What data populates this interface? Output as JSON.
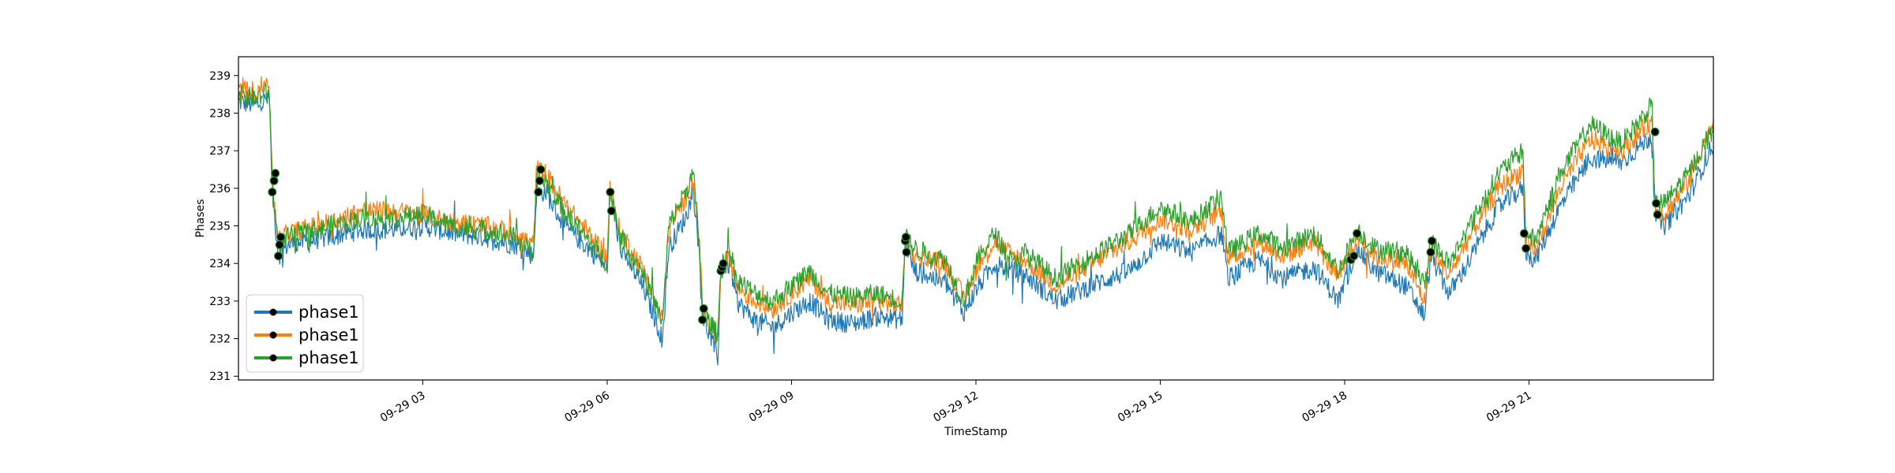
{
  "chart_data": {
    "type": "line",
    "title": "",
    "xlabel": "TimeStamp",
    "ylabel": "Phases",
    "xlim": [
      "09-29 00:00",
      "09-29 24:00"
    ],
    "ylim": [
      230.9,
      239.5
    ],
    "grid": false,
    "legend_position": "lower-left",
    "y_ticks": [
      231,
      232,
      233,
      234,
      235,
      236,
      237,
      238,
      239
    ],
    "x_ticks": [
      {
        "hour": 3,
        "label": "09-29 03"
      },
      {
        "hour": 6,
        "label": "09-29 06"
      },
      {
        "hour": 9,
        "label": "09-29 09"
      },
      {
        "hour": 12,
        "label": "09-29 12"
      },
      {
        "hour": 15,
        "label": "09-29 15"
      },
      {
        "hour": 18,
        "label": "09-29 18"
      },
      {
        "hour": 21,
        "label": "09-29 21"
      }
    ],
    "series": [
      {
        "name": "phase1",
        "color": "#1f77b4",
        "points": [
          [
            0.0,
            238.3
          ],
          [
            0.3,
            238.2
          ],
          [
            0.5,
            238.4
          ],
          [
            0.55,
            235.9
          ],
          [
            0.65,
            234.2
          ],
          [
            0.8,
            234.5
          ],
          [
            1.5,
            234.7
          ],
          [
            2.0,
            234.9
          ],
          [
            2.5,
            234.9
          ],
          [
            3.0,
            235.0
          ],
          [
            3.5,
            234.8
          ],
          [
            4.0,
            234.7
          ],
          [
            4.5,
            234.5
          ],
          [
            4.8,
            234.2
          ],
          [
            4.85,
            235.9
          ],
          [
            5.0,
            235.9
          ],
          [
            5.3,
            235.0
          ],
          [
            5.7,
            234.4
          ],
          [
            6.0,
            233.9
          ],
          [
            6.05,
            235.9
          ],
          [
            6.2,
            234.5
          ],
          [
            6.6,
            233.3
          ],
          [
            6.9,
            232.0
          ],
          [
            7.0,
            234.4
          ],
          [
            7.3,
            235.3
          ],
          [
            7.4,
            236.0
          ],
          [
            7.5,
            234.3
          ],
          [
            7.55,
            232.6
          ],
          [
            7.8,
            231.5
          ],
          [
            7.85,
            233.8
          ],
          [
            8.0,
            234.0
          ],
          [
            8.1,
            233.0
          ],
          [
            8.4,
            232.5
          ],
          [
            8.7,
            232.3
          ],
          [
            9.0,
            232.7
          ],
          [
            9.3,
            233.0
          ],
          [
            9.6,
            232.5
          ],
          [
            10.0,
            232.4
          ],
          [
            10.4,
            232.6
          ],
          [
            10.8,
            232.5
          ],
          [
            10.85,
            234.6
          ],
          [
            11.0,
            233.8
          ],
          [
            11.5,
            233.5
          ],
          [
            11.8,
            232.7
          ],
          [
            12.0,
            233.3
          ],
          [
            12.3,
            234.0
          ],
          [
            12.6,
            233.8
          ],
          [
            12.8,
            233.7
          ],
          [
            13.3,
            233.0
          ],
          [
            14.0,
            233.5
          ],
          [
            14.5,
            233.8
          ],
          [
            15.0,
            234.6
          ],
          [
            15.5,
            234.3
          ],
          [
            16.0,
            234.8
          ],
          [
            16.1,
            233.6
          ],
          [
            16.6,
            234.1
          ],
          [
            17.0,
            233.6
          ],
          [
            17.5,
            233.9
          ],
          [
            17.9,
            233.0
          ],
          [
            18.2,
            234.4
          ],
          [
            18.5,
            233.8
          ],
          [
            19.0,
            233.4
          ],
          [
            19.3,
            232.6
          ],
          [
            19.4,
            234.2
          ],
          [
            19.7,
            233.2
          ],
          [
            20.0,
            234.0
          ],
          [
            20.5,
            235.5
          ],
          [
            20.9,
            236.0
          ],
          [
            20.95,
            234.3
          ],
          [
            21.1,
            234.1
          ],
          [
            21.5,
            235.5
          ],
          [
            22.0,
            236.8
          ],
          [
            22.5,
            236.7
          ],
          [
            23.0,
            237.4
          ],
          [
            23.05,
            235.3
          ],
          [
            23.2,
            235.0
          ],
          [
            23.6,
            235.8
          ],
          [
            24.0,
            237.2
          ]
        ]
      },
      {
        "name": "phase1",
        "color": "#ff7f0e",
        "points": [
          [
            0.0,
            238.6
          ],
          [
            0.3,
            238.6
          ],
          [
            0.5,
            238.9
          ],
          [
            0.55,
            236.1
          ],
          [
            0.65,
            234.6
          ],
          [
            0.8,
            234.8
          ],
          [
            1.5,
            235.1
          ],
          [
            2.0,
            235.4
          ],
          [
            2.5,
            235.4
          ],
          [
            3.0,
            235.3
          ],
          [
            3.5,
            235.1
          ],
          [
            4.0,
            235.0
          ],
          [
            4.5,
            234.8
          ],
          [
            4.8,
            234.5
          ],
          [
            4.85,
            236.5
          ],
          [
            5.0,
            236.4
          ],
          [
            5.3,
            235.6
          ],
          [
            5.7,
            234.8
          ],
          [
            6.0,
            234.2
          ],
          [
            6.05,
            235.9
          ],
          [
            6.2,
            234.9
          ],
          [
            6.6,
            233.8
          ],
          [
            6.9,
            232.5
          ],
          [
            7.0,
            234.9
          ],
          [
            7.3,
            235.8
          ],
          [
            7.4,
            236.2
          ],
          [
            7.5,
            234.6
          ],
          [
            7.55,
            232.8
          ],
          [
            7.8,
            232.0
          ],
          [
            7.85,
            233.9
          ],
          [
            8.0,
            234.2
          ],
          [
            8.1,
            233.4
          ],
          [
            8.4,
            233.0
          ],
          [
            8.7,
            232.8
          ],
          [
            9.0,
            233.2
          ],
          [
            9.3,
            233.6
          ],
          [
            9.6,
            233.0
          ],
          [
            10.0,
            232.9
          ],
          [
            10.4,
            233.0
          ],
          [
            10.8,
            232.9
          ],
          [
            10.85,
            234.6
          ],
          [
            11.0,
            234.2
          ],
          [
            11.5,
            234.0
          ],
          [
            11.8,
            233.1
          ],
          [
            12.0,
            233.8
          ],
          [
            12.3,
            234.6
          ],
          [
            12.6,
            234.2
          ],
          [
            12.8,
            234.1
          ],
          [
            13.3,
            233.4
          ],
          [
            14.0,
            234.1
          ],
          [
            14.5,
            234.6
          ],
          [
            15.0,
            235.2
          ],
          [
            15.5,
            234.9
          ],
          [
            16.0,
            235.4
          ],
          [
            16.1,
            234.1
          ],
          [
            16.6,
            234.6
          ],
          [
            17.0,
            234.2
          ],
          [
            17.5,
            234.6
          ],
          [
            17.9,
            233.6
          ],
          [
            18.2,
            234.7
          ],
          [
            18.5,
            234.2
          ],
          [
            19.0,
            234.0
          ],
          [
            19.3,
            233.0
          ],
          [
            19.4,
            234.4
          ],
          [
            19.7,
            233.7
          ],
          [
            20.0,
            234.6
          ],
          [
            20.5,
            236.0
          ],
          [
            20.9,
            236.5
          ],
          [
            20.95,
            234.5
          ],
          [
            21.1,
            234.3
          ],
          [
            21.5,
            236.0
          ],
          [
            22.0,
            237.3
          ],
          [
            22.5,
            237.0
          ],
          [
            23.0,
            237.8
          ],
          [
            23.05,
            235.5
          ],
          [
            23.2,
            235.3
          ],
          [
            23.6,
            236.2
          ],
          [
            24.0,
            237.8
          ]
        ]
      },
      {
        "name": "phase1",
        "color": "#2ca02c",
        "points": [
          [
            0.0,
            238.5
          ],
          [
            0.3,
            238.4
          ],
          [
            0.5,
            238.6
          ],
          [
            0.55,
            236.2
          ],
          [
            0.65,
            234.4
          ],
          [
            0.8,
            234.7
          ],
          [
            1.5,
            235.0
          ],
          [
            2.0,
            235.2
          ],
          [
            2.5,
            235.2
          ],
          [
            3.0,
            235.3
          ],
          [
            3.5,
            235.0
          ],
          [
            4.0,
            234.9
          ],
          [
            4.5,
            234.7
          ],
          [
            4.8,
            234.3
          ],
          [
            4.85,
            236.2
          ],
          [
            5.0,
            236.2
          ],
          [
            5.3,
            235.4
          ],
          [
            5.7,
            234.6
          ],
          [
            6.0,
            234.0
          ],
          [
            6.05,
            235.9
          ],
          [
            6.2,
            234.8
          ],
          [
            6.6,
            233.7
          ],
          [
            6.9,
            232.4
          ],
          [
            7.0,
            235.0
          ],
          [
            7.3,
            236.0
          ],
          [
            7.4,
            236.4
          ],
          [
            7.5,
            234.5
          ],
          [
            7.55,
            232.7
          ],
          [
            7.8,
            232.1
          ],
          [
            7.85,
            234.0
          ],
          [
            8.0,
            234.4
          ],
          [
            8.1,
            233.6
          ],
          [
            8.4,
            233.2
          ],
          [
            8.7,
            233.0
          ],
          [
            9.0,
            233.4
          ],
          [
            9.3,
            233.8
          ],
          [
            9.6,
            233.2
          ],
          [
            10.0,
            233.1
          ],
          [
            10.4,
            233.2
          ],
          [
            10.8,
            233.0
          ],
          [
            10.85,
            234.7
          ],
          [
            11.0,
            234.4
          ],
          [
            11.5,
            234.1
          ],
          [
            11.8,
            233.0
          ],
          [
            12.0,
            234.0
          ],
          [
            12.3,
            234.8
          ],
          [
            12.6,
            234.0
          ],
          [
            12.8,
            234.3
          ],
          [
            13.3,
            233.6
          ],
          [
            14.0,
            234.3
          ],
          [
            14.5,
            234.8
          ],
          [
            15.0,
            235.5
          ],
          [
            15.5,
            235.1
          ],
          [
            16.0,
            235.8
          ],
          [
            16.1,
            234.3
          ],
          [
            16.6,
            234.8
          ],
          [
            17.0,
            234.4
          ],
          [
            17.5,
            234.8
          ],
          [
            17.9,
            233.8
          ],
          [
            18.2,
            234.9
          ],
          [
            18.5,
            234.4
          ],
          [
            19.0,
            234.3
          ],
          [
            19.3,
            233.4
          ],
          [
            19.4,
            234.6
          ],
          [
            19.7,
            234.0
          ],
          [
            20.0,
            234.9
          ],
          [
            20.5,
            236.4
          ],
          [
            20.9,
            237.0
          ],
          [
            20.95,
            234.8
          ],
          [
            21.1,
            234.6
          ],
          [
            21.5,
            236.4
          ],
          [
            22.0,
            237.7
          ],
          [
            22.5,
            237.2
          ],
          [
            23.0,
            238.2
          ],
          [
            23.05,
            235.6
          ],
          [
            23.2,
            235.6
          ],
          [
            23.6,
            236.4
          ],
          [
            24.0,
            237.6
          ]
        ]
      }
    ],
    "markers": [
      {
        "x": 0.55,
        "y": 235.9
      },
      {
        "x": 0.58,
        "y": 236.2
      },
      {
        "x": 0.6,
        "y": 236.4
      },
      {
        "x": 0.65,
        "y": 234.2
      },
      {
        "x": 0.67,
        "y": 234.5
      },
      {
        "x": 0.69,
        "y": 234.7
      },
      {
        "x": 4.88,
        "y": 235.9
      },
      {
        "x": 4.9,
        "y": 236.2
      },
      {
        "x": 4.92,
        "y": 236.5
      },
      {
        "x": 6.05,
        "y": 235.9
      },
      {
        "x": 6.07,
        "y": 235.4
      },
      {
        "x": 7.55,
        "y": 232.5
      },
      {
        "x": 7.57,
        "y": 232.8
      },
      {
        "x": 7.85,
        "y": 233.8
      },
      {
        "x": 7.87,
        "y": 233.9
      },
      {
        "x": 7.89,
        "y": 234.0
      },
      {
        "x": 10.85,
        "y": 234.6
      },
      {
        "x": 10.86,
        "y": 234.7
      },
      {
        "x": 10.87,
        "y": 234.3
      },
      {
        "x": 18.1,
        "y": 234.1
      },
      {
        "x": 18.15,
        "y": 234.2
      },
      {
        "x": 18.2,
        "y": 234.8
      },
      {
        "x": 19.4,
        "y": 234.3
      },
      {
        "x": 19.42,
        "y": 234.6
      },
      {
        "x": 20.92,
        "y": 234.8
      },
      {
        "x": 20.95,
        "y": 234.4
      },
      {
        "x": 23.05,
        "y": 237.5
      },
      {
        "x": 23.07,
        "y": 235.6
      },
      {
        "x": 23.09,
        "y": 235.3
      }
    ]
  }
}
